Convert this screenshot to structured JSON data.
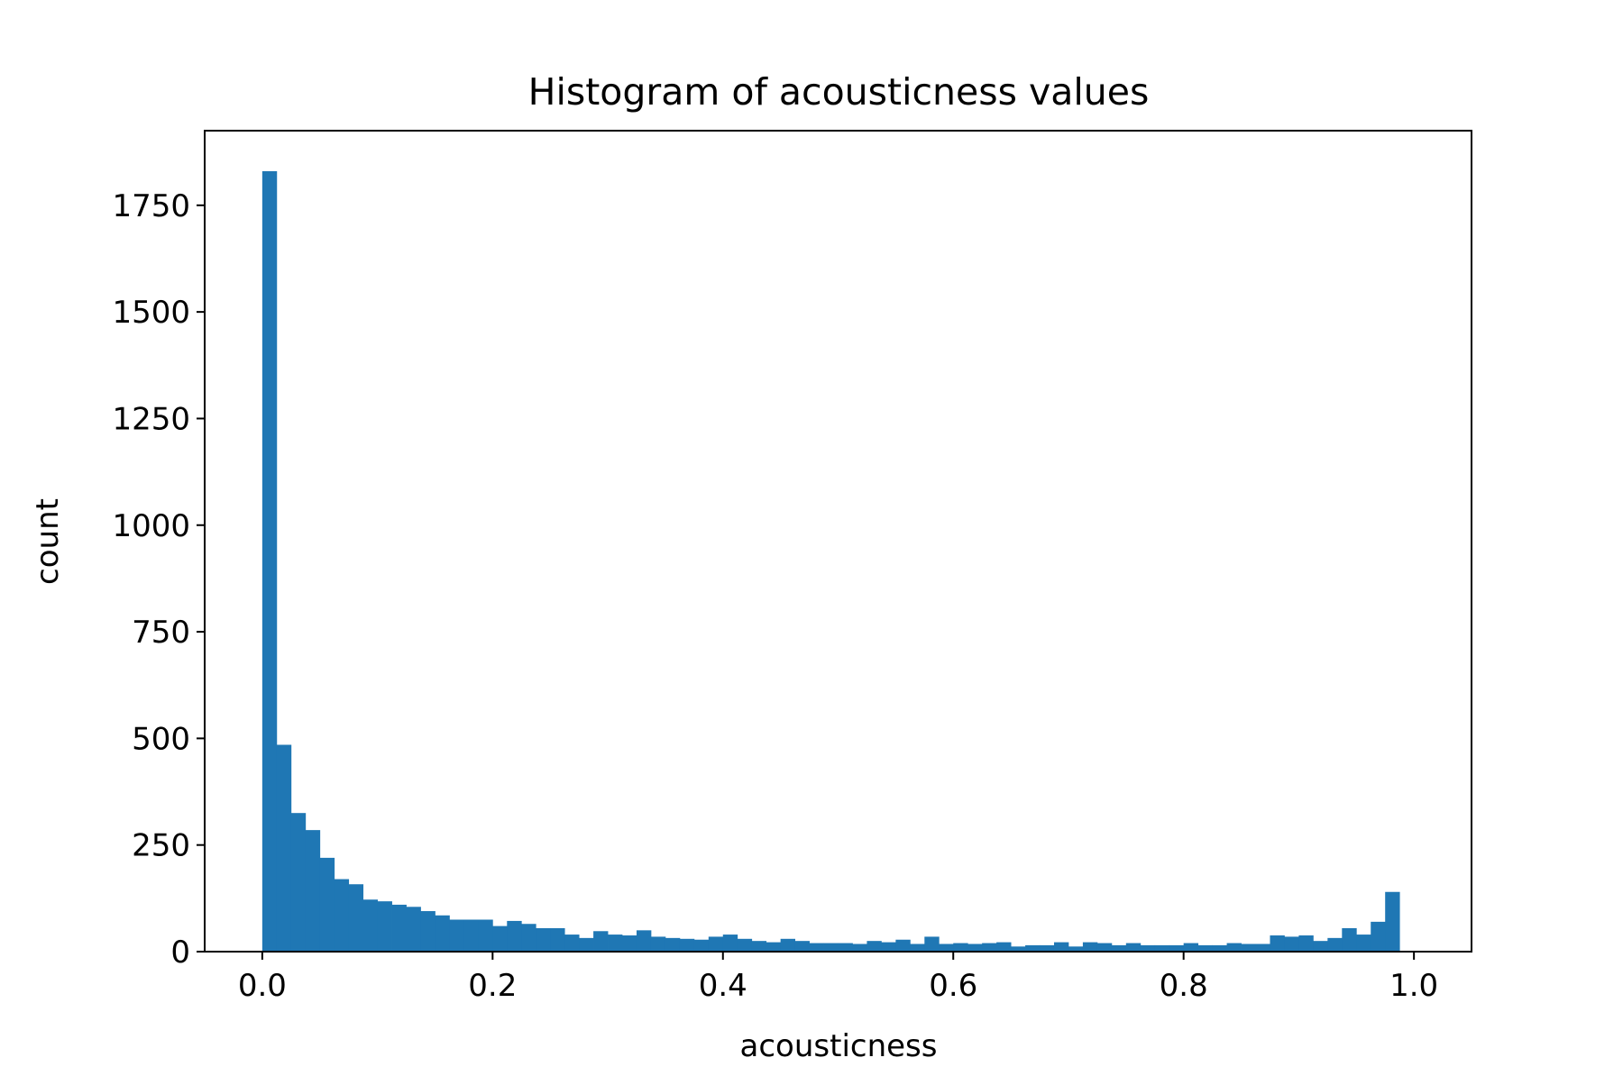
{
  "chart_data": {
    "type": "bar",
    "subtype": "histogram",
    "title": "Histogram of acousticness values",
    "xlabel": "acousticness",
    "ylabel": "count",
    "xlim": [
      -0.05,
      1.05
    ],
    "ylim": [
      0,
      1925
    ],
    "bin_width": 0.0125,
    "bin_start": 0.0,
    "color": "#1f77b4",
    "x_ticks": [
      0.0,
      0.2,
      0.4,
      0.6,
      0.8,
      1.0
    ],
    "x_tick_labels": [
      "0.0",
      "0.2",
      "0.4",
      "0.6",
      "0.8",
      "1.0"
    ],
    "y_ticks": [
      0,
      250,
      500,
      750,
      1000,
      1250,
      1500,
      1750
    ],
    "y_tick_labels": [
      "0",
      "250",
      "500",
      "750",
      "1000",
      "1250",
      "1500",
      "1750"
    ],
    "values": [
      1830,
      485,
      325,
      285,
      220,
      170,
      158,
      122,
      118,
      110,
      105,
      95,
      85,
      75,
      75,
      75,
      60,
      72,
      65,
      55,
      55,
      40,
      32,
      48,
      40,
      38,
      50,
      35,
      32,
      30,
      28,
      35,
      40,
      30,
      25,
      22,
      30,
      25,
      20,
      20,
      20,
      18,
      25,
      22,
      28,
      18,
      35,
      18,
      20,
      18,
      20,
      22,
      12,
      15,
      15,
      22,
      12,
      22,
      20,
      15,
      20,
      15,
      15,
      15,
      20,
      15,
      15,
      20,
      18,
      18,
      38,
      35,
      38,
      25,
      32,
      55,
      40,
      70,
      140
    ]
  }
}
